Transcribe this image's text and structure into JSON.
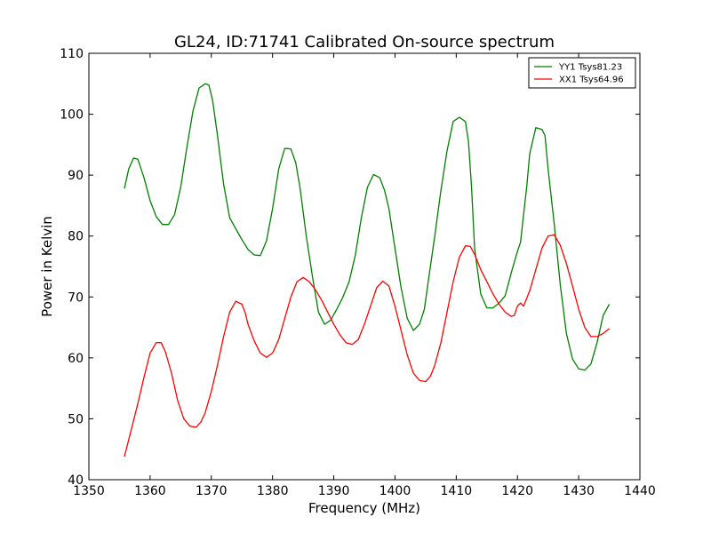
{
  "chart_data": {
    "type": "line",
    "title": "GL24, ID:71741 Calibrated On-source spectrum",
    "xlabel": "Frequency (MHz)",
    "ylabel": "Power in Kelvin",
    "xlim": [
      1350,
      1440
    ],
    "ylim": [
      40,
      110
    ],
    "xticks": [
      1350,
      1360,
      1370,
      1380,
      1390,
      1400,
      1410,
      1420,
      1430,
      1440
    ],
    "yticks": [
      40,
      50,
      60,
      70,
      80,
      90,
      100,
      110
    ],
    "grid": false,
    "legend_position": "top-right",
    "series": [
      {
        "name": "YY1 Tsys81.23",
        "color": "#008000",
        "x": [
          1355.8,
          1356.5,
          1357.3,
          1358.0,
          1359.0,
          1360.0,
          1361.0,
          1362.0,
          1363.0,
          1364.0,
          1365.0,
          1366.0,
          1367.0,
          1368.0,
          1369.0,
          1369.6,
          1370.2,
          1371.0,
          1372.0,
          1373.0,
          1374.0,
          1375.0,
          1376.0,
          1377.0,
          1378.0,
          1379.0,
          1380.0,
          1381.0,
          1382.0,
          1383.0,
          1383.8,
          1384.5,
          1385.5,
          1386.5,
          1387.5,
          1388.5,
          1389.5,
          1390.5,
          1391.5,
          1392.5,
          1393.5,
          1394.5,
          1395.5,
          1396.5,
          1397.5,
          1398.3,
          1399.0,
          1400.0,
          1401.0,
          1402.0,
          1403.0,
          1404.0,
          1404.8,
          1405.5,
          1406.5,
          1407.5,
          1408.5,
          1409.5,
          1410.5,
          1411.5,
          1412.0,
          1412.5,
          1413.0,
          1414.0,
          1415.0,
          1416.0,
          1417.0,
          1418.0,
          1419.0,
          1420.0,
          1420.5,
          1421.0,
          1421.5,
          1422.0,
          1423.0,
          1424.0,
          1424.5,
          1425.0,
          1426.0,
          1427.0,
          1428.0,
          1429.0,
          1430.0,
          1431.0,
          1432.0,
          1433.0,
          1434.0,
          1435.0
        ],
        "values": [
          87.8,
          91.0,
          92.8,
          92.6,
          89.6,
          85.8,
          83.2,
          81.9,
          81.9,
          83.5,
          88.0,
          94.5,
          100.5,
          104.3,
          105.0,
          104.8,
          102.3,
          96.5,
          88.5,
          83.0,
          81.2,
          79.4,
          77.8,
          76.9,
          76.8,
          79.2,
          84.5,
          91.0,
          94.4,
          94.3,
          92.0,
          87.8,
          80.0,
          73.5,
          67.5,
          65.5,
          66.2,
          68.0,
          70.0,
          72.5,
          76.8,
          83.0,
          88.0,
          90.1,
          89.6,
          87.5,
          84.5,
          78.0,
          71.5,
          66.5,
          64.5,
          65.5,
          68.0,
          73.0,
          80.0,
          87.5,
          94.0,
          98.8,
          99.5,
          98.8,
          95.5,
          88.0,
          78.0,
          70.5,
          68.2,
          68.2,
          69.0,
          70.2,
          74.0,
          77.5,
          79.0,
          83.5,
          88.0,
          93.5,
          97.8,
          97.5,
          96.5,
          91.0,
          82.0,
          72.0,
          64.0,
          59.8,
          58.2,
          58.0,
          59.0,
          62.5,
          67.0,
          68.8
        ]
      },
      {
        "name": "XX1 Tsys64.96",
        "color": "#ff0000",
        "x": [
          1355.8,
          1357.0,
          1358.0,
          1359.0,
          1360.0,
          1361.0,
          1361.8,
          1362.5,
          1363.5,
          1364.5,
          1365.5,
          1366.5,
          1367.5,
          1368.3,
          1369.0,
          1370.0,
          1371.0,
          1372.0,
          1373.0,
          1374.0,
          1375.0,
          1375.5,
          1376.0,
          1377.0,
          1378.0,
          1379.0,
          1380.0,
          1381.0,
          1382.0,
          1383.0,
          1384.0,
          1385.0,
          1386.0,
          1387.0,
          1388.0,
          1389.0,
          1390.0,
          1391.0,
          1392.0,
          1393.0,
          1394.0,
          1395.0,
          1396.0,
          1397.0,
          1398.0,
          1399.0,
          1400.0,
          1401.0,
          1402.0,
          1403.0,
          1404.0,
          1405.0,
          1405.8,
          1406.5,
          1407.5,
          1408.5,
          1409.5,
          1410.5,
          1411.5,
          1412.3,
          1413.0,
          1414.0,
          1415.0,
          1416.0,
          1417.0,
          1418.0,
          1419.0,
          1419.5,
          1420.0,
          1420.5,
          1421.0,
          1422.0,
          1423.0,
          1424.0,
          1425.0,
          1426.0,
          1427.0,
          1428.0,
          1429.0,
          1430.0,
          1431.0,
          1432.0,
          1433.0,
          1434.0,
          1435.0
        ],
        "values": [
          43.8,
          48.5,
          52.5,
          56.8,
          60.8,
          62.5,
          62.5,
          61.0,
          57.5,
          53.0,
          50.0,
          48.8,
          48.6,
          49.5,
          51.0,
          54.5,
          58.8,
          63.5,
          67.5,
          69.3,
          68.8,
          67.5,
          65.5,
          62.8,
          60.8,
          60.1,
          60.8,
          63.0,
          66.5,
          70.0,
          72.5,
          73.2,
          72.5,
          71.2,
          69.5,
          67.5,
          65.5,
          63.8,
          62.5,
          62.2,
          63.0,
          65.5,
          68.5,
          71.5,
          72.6,
          71.8,
          68.5,
          64.5,
          60.5,
          57.5,
          56.3,
          56.1,
          57.0,
          58.8,
          62.5,
          67.5,
          72.5,
          76.5,
          78.4,
          78.3,
          77.0,
          74.5,
          72.5,
          70.5,
          68.8,
          67.5,
          66.8,
          67.0,
          68.5,
          69.0,
          68.5,
          71.0,
          74.5,
          78.0,
          80.0,
          80.2,
          78.5,
          75.5,
          71.8,
          68.0,
          65.0,
          63.5,
          63.5,
          64.0,
          64.8
        ]
      }
    ]
  }
}
